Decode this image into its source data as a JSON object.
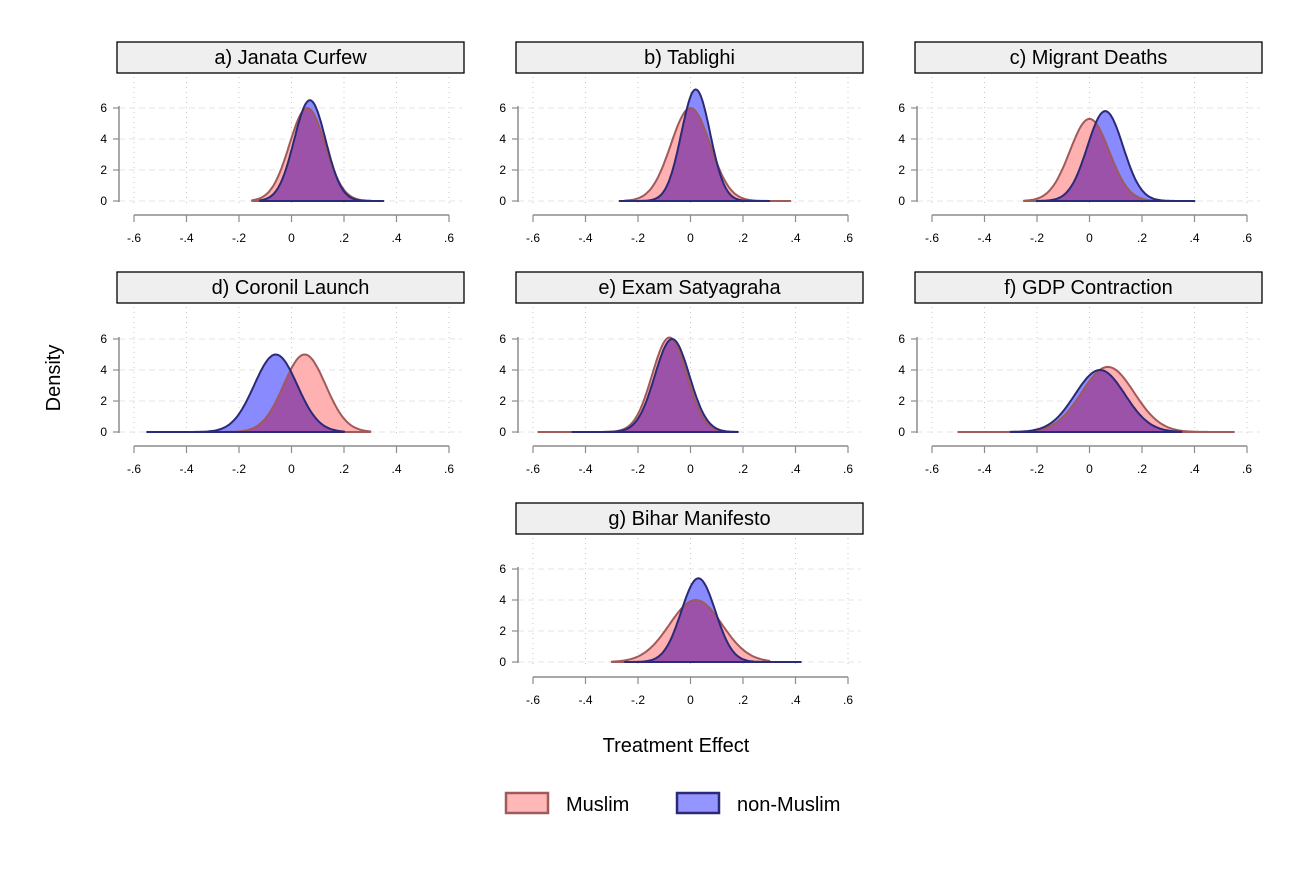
{
  "figure": {
    "y_axis_title": "Density",
    "x_axis_title": "Treatment Effect",
    "legend": [
      {
        "label": "Muslim",
        "fill": "#ffb0b0",
        "stroke": "#a05a5a"
      },
      {
        "label": "non-Muslim",
        "fill": "#8a8aff",
        "stroke": "#2a2a78"
      }
    ],
    "overlap_color": "#9b52a8",
    "x_tick_labels": [
      "-.6",
      "-.4",
      "-.2",
      "0",
      ".2",
      ".4",
      ".6"
    ],
    "y_tick_labels": [
      "0",
      "2",
      "4",
      "6"
    ]
  },
  "chart_data": [
    {
      "type": "area",
      "title": "a) Janata Curfew",
      "xlabel": "Treatment Effect",
      "ylabel": "Density",
      "xlim": [
        -0.6,
        0.6
      ],
      "ylim": [
        0,
        6.5
      ],
      "x_ticks": [
        -0.6,
        -0.4,
        -0.2,
        0,
        0.2,
        0.4,
        0.6
      ],
      "y_ticks": [
        0,
        2,
        4,
        6
      ],
      "series": [
        {
          "name": "Muslim",
          "mean": 0.06,
          "sd": 0.068,
          "peak": 6.0,
          "min": -0.15,
          "max": 0.3
        },
        {
          "name": "non-Muslim",
          "mean": 0.07,
          "sd": 0.06,
          "peak": 6.5,
          "min": -0.12,
          "max": 0.35
        }
      ]
    },
    {
      "type": "area",
      "title": "b) Tablighi",
      "xlabel": "Treatment Effect",
      "ylabel": "Density",
      "xlim": [
        -0.6,
        0.6
      ],
      "ylim": [
        0,
        7.2
      ],
      "x_ticks": [
        -0.6,
        -0.4,
        -0.2,
        0,
        0.2,
        0.4,
        0.6
      ],
      "y_ticks": [
        0,
        2,
        4,
        6
      ],
      "series": [
        {
          "name": "Muslim",
          "mean": 0.0,
          "sd": 0.075,
          "peak": 6.0,
          "min": -0.25,
          "max": 0.38
        },
        {
          "name": "non-Muslim",
          "mean": 0.02,
          "sd": 0.055,
          "peak": 7.2,
          "min": -0.27,
          "max": 0.3
        }
      ]
    },
    {
      "type": "area",
      "title": "c) Migrant Deaths",
      "xlabel": "Treatment Effect",
      "ylabel": "Density",
      "xlim": [
        -0.6,
        0.6
      ],
      "ylim": [
        0,
        6.5
      ],
      "x_ticks": [
        -0.6,
        -0.4,
        -0.2,
        0,
        0.2,
        0.4,
        0.6
      ],
      "y_ticks": [
        0,
        2,
        4,
        6
      ],
      "series": [
        {
          "name": "Muslim",
          "mean": 0.0,
          "sd": 0.075,
          "peak": 5.3,
          "min": -0.25,
          "max": 0.35
        },
        {
          "name": "non-Muslim",
          "mean": 0.06,
          "sd": 0.068,
          "peak": 5.8,
          "min": -0.2,
          "max": 0.4
        }
      ]
    },
    {
      "type": "area",
      "title": "d) Coronil Launch",
      "xlabel": "Treatment Effect",
      "ylabel": "Density",
      "xlim": [
        -0.6,
        0.6
      ],
      "ylim": [
        0,
        6.5
      ],
      "x_ticks": [
        -0.6,
        -0.4,
        -0.2,
        0,
        0.2,
        0.4,
        0.6
      ],
      "y_ticks": [
        0,
        2,
        4,
        6
      ],
      "series": [
        {
          "name": "Muslim",
          "mean": 0.05,
          "sd": 0.08,
          "peak": 5.0,
          "min": -0.35,
          "max": 0.3
        },
        {
          "name": "non-Muslim",
          "mean": -0.06,
          "sd": 0.082,
          "peak": 5.0,
          "min": -0.55,
          "max": 0.2
        }
      ]
    },
    {
      "type": "area",
      "title": "e) Exam Satyagraha",
      "xlabel": "Treatment Effect",
      "ylabel": "Density",
      "xlim": [
        -0.6,
        0.6
      ],
      "ylim": [
        0,
        6.5
      ],
      "x_ticks": [
        -0.6,
        -0.4,
        -0.2,
        0,
        0.2,
        0.4,
        0.6
      ],
      "y_ticks": [
        0,
        2,
        4,
        6
      ],
      "series": [
        {
          "name": "Muslim",
          "mean": -0.08,
          "sd": 0.066,
          "peak": 6.1,
          "min": -0.58,
          "max": 0.15
        },
        {
          "name": "non-Muslim",
          "mean": -0.07,
          "sd": 0.066,
          "peak": 6.0,
          "min": -0.45,
          "max": 0.18
        }
      ]
    },
    {
      "type": "area",
      "title": "f) GDP Contraction",
      "xlabel": "Treatment Effect",
      "ylabel": "Density",
      "xlim": [
        -0.6,
        0.6
      ],
      "ylim": [
        0,
        6.5
      ],
      "x_ticks": [
        -0.6,
        -0.4,
        -0.2,
        0,
        0.2,
        0.4,
        0.6
      ],
      "y_ticks": [
        0,
        2,
        4,
        6
      ],
      "series": [
        {
          "name": "Muslim",
          "mean": 0.07,
          "sd": 0.1,
          "peak": 4.2,
          "min": -0.5,
          "max": 0.55
        },
        {
          "name": "non-Muslim",
          "mean": 0.04,
          "sd": 0.095,
          "peak": 4.0,
          "min": -0.3,
          "max": 0.35
        }
      ]
    },
    {
      "type": "area",
      "title": "g) Bihar Manifesto",
      "xlabel": "Treatment Effect",
      "ylabel": "Density",
      "xlim": [
        -0.6,
        0.6
      ],
      "ylim": [
        0,
        6.5
      ],
      "x_ticks": [
        -0.6,
        -0.4,
        -0.2,
        0,
        0.2,
        0.4,
        0.6
      ],
      "y_ticks": [
        0,
        2,
        4,
        6
      ],
      "series": [
        {
          "name": "Muslim",
          "mean": 0.02,
          "sd": 0.1,
          "peak": 4.0,
          "min": -0.3,
          "max": 0.3
        },
        {
          "name": "non-Muslim",
          "mean": 0.03,
          "sd": 0.065,
          "peak": 5.4,
          "min": -0.25,
          "max": 0.42
        }
      ]
    }
  ]
}
